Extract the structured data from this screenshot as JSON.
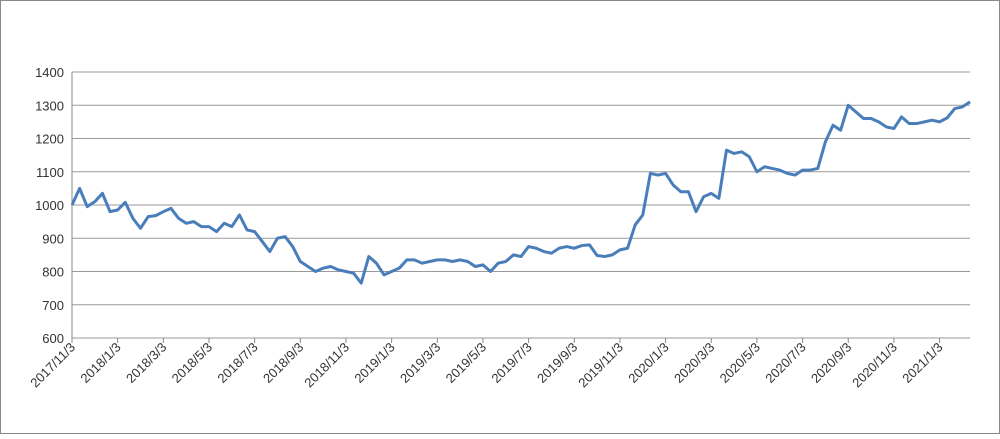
{
  "chart_data": {
    "type": "line",
    "categories": [
      "2017/11/3",
      null,
      null,
      null,
      null,
      null,
      "2018/1/3",
      null,
      null,
      null,
      null,
      null,
      "2018/3/3",
      null,
      null,
      null,
      null,
      null,
      "2018/5/3",
      null,
      null,
      null,
      null,
      null,
      "2018/7/3",
      null,
      null,
      null,
      null,
      null,
      "2018/9/3",
      null,
      null,
      null,
      null,
      null,
      "2018/11/3",
      null,
      null,
      null,
      null,
      null,
      "2019/1/3",
      null,
      null,
      null,
      null,
      null,
      "2019/3/3",
      null,
      null,
      null,
      null,
      null,
      "2019/5/3",
      null,
      null,
      null,
      null,
      null,
      "2019/7/3",
      null,
      null,
      null,
      null,
      null,
      "2019/9/3",
      null,
      null,
      null,
      null,
      null,
      "2019/11/3",
      null,
      null,
      null,
      null,
      null,
      "2020/1/3",
      null,
      null,
      null,
      null,
      null,
      "2020/3/3",
      null,
      null,
      null,
      null,
      null,
      "2020/5/3",
      null,
      null,
      null,
      null,
      null,
      "2020/7/3",
      null,
      null,
      null,
      null,
      null,
      "2020/9/3",
      null,
      null,
      null,
      null,
      null,
      "2020/11/3",
      null,
      null,
      null,
      null,
      null,
      "2021/1/3",
      null,
      null,
      null,
      null
    ],
    "series": [
      {
        "color": "#4a7ebb",
        "values": [
          1000,
          1050,
          995,
          1010,
          1035,
          980,
          985,
          1008,
          960,
          930,
          965,
          968,
          980,
          990,
          960,
          945,
          950,
          935,
          935,
          920,
          945,
          935,
          970,
          925,
          920,
          890,
          860,
          900,
          905,
          875,
          830,
          815,
          800,
          810,
          815,
          805,
          800,
          795,
          765,
          845,
          825,
          790,
          800,
          810,
          835,
          835,
          825,
          830,
          835,
          835,
          830,
          835,
          830,
          815,
          820,
          800,
          825,
          830,
          850,
          845,
          875,
          870,
          860,
          855,
          870,
          875,
          870,
          878,
          880,
          848,
          845,
          850,
          865,
          870,
          940,
          970,
          1095,
          1090,
          1095,
          1060,
          1040,
          1040,
          980,
          1025,
          1035,
          1020,
          1165,
          1155,
          1160,
          1145,
          1100,
          1115,
          1110,
          1105,
          1095,
          1090,
          1105,
          1105,
          1110,
          1190,
          1240,
          1225,
          1300,
          1280,
          1260,
          1260,
          1250,
          1235,
          1230,
          1265,
          1245,
          1245,
          1250,
          1255,
          1250,
          1262,
          1290,
          1295,
          1310
        ]
      }
    ],
    "ylim": [
      600,
      1400
    ],
    "yticks": [
      600,
      700,
      800,
      900,
      1000,
      1100,
      1200,
      1300,
      1400
    ],
    "grid": true
  }
}
